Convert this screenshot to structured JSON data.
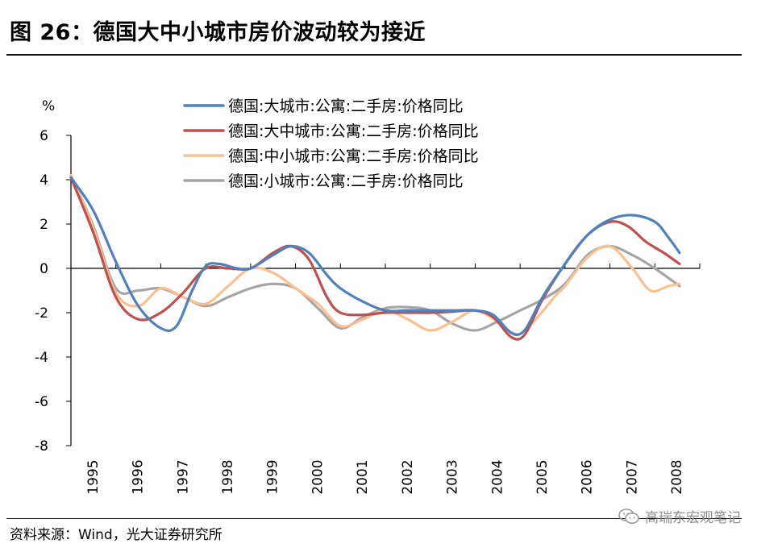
{
  "header": {
    "title": "图 26：德国大中小城市房价波动较为接近"
  },
  "footer": {
    "source": "资料来源：Wind，光大证券研究所",
    "watermark": "高瑞东宏观笔记",
    "watermark_icon": "wechat-icon"
  },
  "chart_data": {
    "type": "line",
    "title": "",
    "xlabel": "",
    "ylabel": "%",
    "ylim": [
      -8,
      6
    ],
    "yticks": [
      -8,
      -6,
      -4,
      -2,
      0,
      2,
      4,
      6
    ],
    "xlim": [
      1995,
      2009
    ],
    "xtick_labels": [
      "1995",
      "1996",
      "1997",
      "1998",
      "1999",
      "2000",
      "2001",
      "2002",
      "2003",
      "2004",
      "2005",
      "2006",
      "2007",
      "2008"
    ],
    "grid": false,
    "legend_position": "top-center",
    "series": [
      {
        "name": "德国:大城市:公寓:二手房:价格同比",
        "color": "#4f81bd",
        "points": [
          [
            1995.0,
            4.1
          ],
          [
            1995.5,
            2.6
          ],
          [
            1996.0,
            0.3
          ],
          [
            1996.5,
            -1.7
          ],
          [
            1997.0,
            -2.7
          ],
          [
            1997.35,
            -2.6
          ],
          [
            1997.7,
            -1.0
          ],
          [
            1998.0,
            0.1
          ],
          [
            1998.3,
            0.2
          ],
          [
            1998.7,
            0.0
          ],
          [
            1999.0,
            0.0
          ],
          [
            1999.5,
            0.6
          ],
          [
            1999.9,
            1.0
          ],
          [
            2000.3,
            0.7
          ],
          [
            2000.7,
            -0.3
          ],
          [
            2001.0,
            -0.9
          ],
          [
            2001.5,
            -1.5
          ],
          [
            2002.0,
            -1.9
          ],
          [
            2002.5,
            -1.9
          ],
          [
            2003.0,
            -1.9
          ],
          [
            2003.5,
            -1.9
          ],
          [
            2004.0,
            -1.9
          ],
          [
            2004.4,
            -2.1
          ],
          [
            2004.8,
            -2.9
          ],
          [
            2005.1,
            -2.8
          ],
          [
            2005.5,
            -1.3
          ],
          [
            2006.0,
            0.2
          ],
          [
            2006.5,
            1.5
          ],
          [
            2007.0,
            2.2
          ],
          [
            2007.5,
            2.4
          ],
          [
            2008.0,
            2.1
          ],
          [
            2008.3,
            1.4
          ],
          [
            2008.55,
            0.7
          ]
        ]
      },
      {
        "name": "德国:大中城市:公寓:二手房:价格同比",
        "color": "#c0504d",
        "points": [
          [
            1995.0,
            4.1
          ],
          [
            1995.5,
            1.6
          ],
          [
            1996.0,
            -1.3
          ],
          [
            1996.5,
            -2.3
          ],
          [
            1997.0,
            -2.0
          ],
          [
            1997.5,
            -1.1
          ],
          [
            1998.0,
            0.0
          ],
          [
            1998.5,
            0.0
          ],
          [
            1999.0,
            0.0
          ],
          [
            1999.5,
            0.7
          ],
          [
            1999.9,
            1.0
          ],
          [
            2000.3,
            0.4
          ],
          [
            2000.7,
            -1.3
          ],
          [
            2001.0,
            -2.0
          ],
          [
            2001.5,
            -2.1
          ],
          [
            2002.0,
            -2.0
          ],
          [
            2002.5,
            -2.0
          ],
          [
            2003.0,
            -2.0
          ],
          [
            2003.5,
            -1.95
          ],
          [
            2004.0,
            -1.9
          ],
          [
            2004.4,
            -2.2
          ],
          [
            2004.8,
            -3.1
          ],
          [
            2005.1,
            -3.0
          ],
          [
            2005.5,
            -1.4
          ],
          [
            2006.0,
            0.2
          ],
          [
            2006.5,
            1.5
          ],
          [
            2007.0,
            2.1
          ],
          [
            2007.4,
            1.9
          ],
          [
            2007.8,
            1.2
          ],
          [
            2008.2,
            0.7
          ],
          [
            2008.55,
            0.2
          ]
        ]
      },
      {
        "name": "德国:中小城市:公寓:二手房:价格同比",
        "color": "#fac090",
        "points": [
          [
            1995.0,
            4.2
          ],
          [
            1995.5,
            1.8
          ],
          [
            1996.0,
            -1.1
          ],
          [
            1996.5,
            -1.7
          ],
          [
            1997.0,
            -0.9
          ],
          [
            1997.5,
            -1.3
          ],
          [
            1998.0,
            -1.6
          ],
          [
            1998.5,
            -0.8
          ],
          [
            1999.0,
            0.0
          ],
          [
            1999.5,
            -0.2
          ],
          [
            2000.0,
            -0.9
          ],
          [
            2000.5,
            -1.6
          ],
          [
            2001.0,
            -2.6
          ],
          [
            2001.5,
            -2.3
          ],
          [
            2002.0,
            -1.9
          ],
          [
            2002.5,
            -2.3
          ],
          [
            2003.0,
            -2.8
          ],
          [
            2003.5,
            -2.4
          ],
          [
            2004.0,
            -1.9
          ],
          [
            2004.5,
            -2.4
          ],
          [
            2004.9,
            -3.0
          ],
          [
            2005.3,
            -2.4
          ],
          [
            2005.8,
            -1.2
          ],
          [
            2006.0,
            -0.8
          ],
          [
            2006.5,
            0.5
          ],
          [
            2007.0,
            1.0
          ],
          [
            2007.5,
            0.0
          ],
          [
            2007.9,
            -1.0
          ],
          [
            2008.3,
            -0.8
          ],
          [
            2008.55,
            -0.7
          ]
        ]
      },
      {
        "name": "德国:小城市:公寓:二手房:价格同比",
        "color": "#a5a5a5",
        "points": [
          [
            1995.0,
            4.2
          ],
          [
            1995.5,
            1.9
          ],
          [
            1996.0,
            -0.9
          ],
          [
            1996.5,
            -1.0
          ],
          [
            1997.0,
            -0.9
          ],
          [
            1997.5,
            -1.3
          ],
          [
            1998.0,
            -1.7
          ],
          [
            1998.5,
            -1.3
          ],
          [
            1999.0,
            -0.9
          ],
          [
            1999.5,
            -0.7
          ],
          [
            2000.0,
            -0.9
          ],
          [
            2000.5,
            -1.8
          ],
          [
            2001.0,
            -2.7
          ],
          [
            2001.5,
            -2.2
          ],
          [
            2002.0,
            -1.8
          ],
          [
            2002.5,
            -1.75
          ],
          [
            2003.0,
            -1.9
          ],
          [
            2003.5,
            -2.5
          ],
          [
            2004.0,
            -2.8
          ],
          [
            2004.5,
            -2.4
          ],
          [
            2005.0,
            -1.9
          ],
          [
            2005.5,
            -1.4
          ],
          [
            2006.0,
            -0.7
          ],
          [
            2006.5,
            0.6
          ],
          [
            2007.0,
            1.0
          ],
          [
            2007.5,
            0.6
          ],
          [
            2008.0,
            0.0
          ],
          [
            2008.55,
            -0.8
          ]
        ]
      }
    ]
  }
}
